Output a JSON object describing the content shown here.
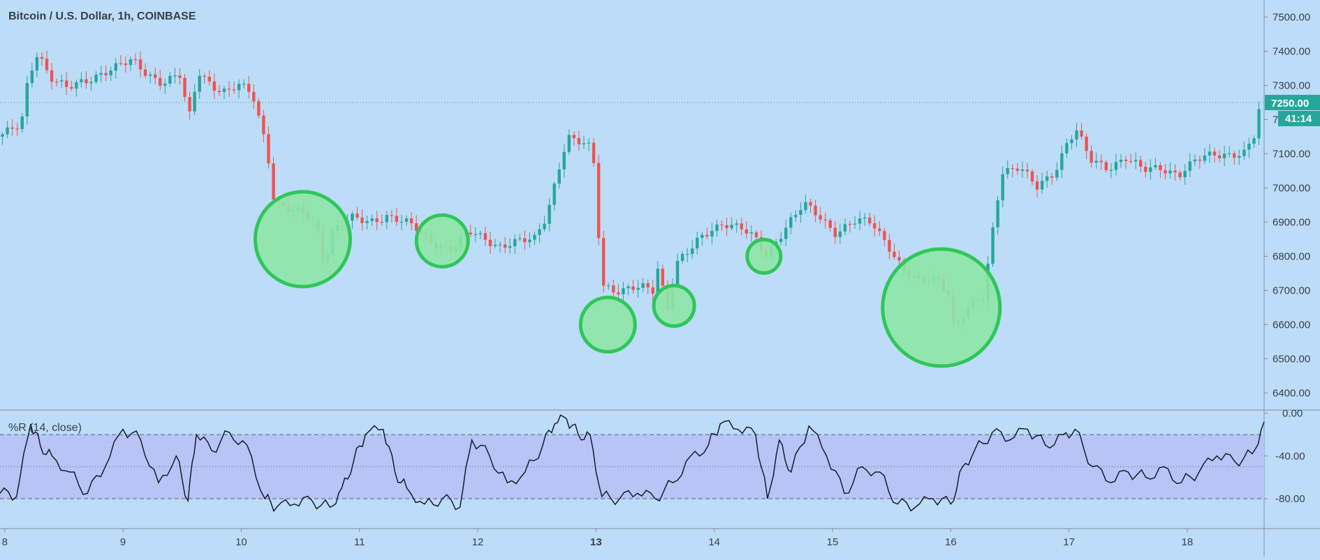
{
  "title": "Bitcoin / U.S. Dollar, 1h, COINBASE",
  "colors": {
    "background": "#bcdcf8",
    "up": "#26a69a",
    "down": "#ef5350",
    "highlight_fill": "#8ee6a6",
    "highlight_stroke": "#2fc65a",
    "wr_band": "#b7c4f5",
    "wr_line": "#1a1a2e",
    "price_tag": "#26a69a",
    "text": "#3a3f4a"
  },
  "price_label": "7250.00",
  "countdown_label": "41:14",
  "chart_data": [
    {
      "type": "candlestick",
      "title": "Bitcoin / U.S. Dollar, 1h, COINBASE",
      "xlabel": "",
      "ylabel": "",
      "ylim": [
        6350,
        7550
      ],
      "y_ticks": [
        7500,
        7400,
        7300,
        7200,
        7100,
        7000,
        6900,
        6800,
        6700,
        6600,
        6500,
        6400
      ],
      "y_tick_labels": [
        "7500.00",
        "7400.00",
        "7300.00",
        "7200.00",
        "7100.00",
        "7000.00",
        "6900.00",
        "6800.00",
        "6700.00",
        "6600.00",
        "6500.00",
        "6400.00"
      ],
      "x_range_days": [
        7.96,
        18.65
      ],
      "x_ticks": [
        8,
        9,
        10,
        11,
        12,
        13,
        14,
        15,
        16,
        17,
        18
      ],
      "x_tick_labels": [
        "8",
        "9",
        "10",
        "11",
        "12",
        "13",
        "14",
        "15",
        "16",
        "17",
        "18"
      ],
      "close_path": [
        [
          7.96,
          7150
        ],
        [
          8.08,
          7170
        ],
        [
          8.16,
          7180
        ],
        [
          8.22,
          7320
        ],
        [
          8.3,
          7400
        ],
        [
          8.4,
          7330
        ],
        [
          8.55,
          7290
        ],
        [
          8.7,
          7310
        ],
        [
          8.85,
          7340
        ],
        [
          9.0,
          7360
        ],
        [
          9.1,
          7370
        ],
        [
          9.2,
          7340
        ],
        [
          9.35,
          7310
        ],
        [
          9.5,
          7330
        ],
        [
          9.58,
          7200
        ],
        [
          9.66,
          7340
        ],
        [
          9.78,
          7300
        ],
        [
          9.9,
          7280
        ],
        [
          10.0,
          7300
        ],
        [
          10.12,
          7270
        ],
        [
          10.2,
          7170
        ],
        [
          10.26,
          7070
        ],
        [
          10.3,
          6960
        ],
        [
          10.4,
          6940
        ],
        [
          10.55,
          6920
        ],
        [
          10.65,
          6900
        ],
        [
          10.72,
          6780
        ],
        [
          10.8,
          6880
        ],
        [
          10.95,
          6910
        ],
        [
          11.1,
          6900
        ],
        [
          11.25,
          6920
        ],
        [
          11.4,
          6900
        ],
        [
          11.5,
          6880
        ],
        [
          11.65,
          6840
        ],
        [
          11.8,
          6820
        ],
        [
          11.95,
          6870
        ],
        [
          12.1,
          6850
        ],
        [
          12.2,
          6830
        ],
        [
          12.35,
          6840
        ],
        [
          12.5,
          6850
        ],
        [
          12.6,
          6920
        ],
        [
          12.7,
          7050
        ],
        [
          12.78,
          7150
        ],
        [
          12.85,
          7130
        ],
        [
          12.95,
          7130
        ],
        [
          13.0,
          7080
        ],
        [
          13.03,
          6920
        ],
        [
          13.08,
          6720
        ],
        [
          13.18,
          6700
        ],
        [
          13.3,
          6700
        ],
        [
          13.4,
          6710
        ],
        [
          13.5,
          6700
        ],
        [
          13.55,
          6780
        ],
        [
          13.62,
          6640
        ],
        [
          13.7,
          6780
        ],
        [
          13.8,
          6810
        ],
        [
          13.9,
          6850
        ],
        [
          14.0,
          6880
        ],
        [
          14.1,
          6900
        ],
        [
          14.25,
          6880
        ],
        [
          14.4,
          6840
        ],
        [
          14.45,
          6800
        ],
        [
          14.55,
          6850
        ],
        [
          14.68,
          6910
        ],
        [
          14.78,
          6950
        ],
        [
          14.9,
          6920
        ],
        [
          15.05,
          6870
        ],
        [
          15.2,
          6900
        ],
        [
          15.35,
          6900
        ],
        [
          15.5,
          6830
        ],
        [
          15.62,
          6760
        ],
        [
          15.75,
          6720
        ],
        [
          15.9,
          6740
        ],
        [
          16.0,
          6700
        ],
        [
          16.05,
          6590
        ],
        [
          16.15,
          6640
        ],
        [
          16.3,
          6680
        ],
        [
          16.38,
          6890
        ],
        [
          16.45,
          7050
        ],
        [
          16.6,
          7060
        ],
        [
          16.75,
          7000
        ],
        [
          16.9,
          7050
        ],
        [
          17.0,
          7130
        ],
        [
          17.08,
          7170
        ],
        [
          17.2,
          7080
        ],
        [
          17.35,
          7060
        ],
        [
          17.5,
          7090
        ],
        [
          17.65,
          7050
        ],
        [
          17.8,
          7060
        ],
        [
          17.95,
          7040
        ],
        [
          18.1,
          7080
        ],
        [
          18.25,
          7100
        ],
        [
          18.4,
          7100
        ],
        [
          18.5,
          7100
        ],
        [
          18.58,
          7140
        ],
        [
          18.64,
          7250
        ]
      ]
    },
    {
      "type": "line",
      "title": "%R (14, close)",
      "xlabel": "",
      "ylabel": "",
      "ylim": [
        -108,
        3
      ],
      "y_ticks": [
        0,
        -40,
        -80
      ],
      "y_tick_labels": [
        "0.00",
        "-40.00",
        "-80.00"
      ],
      "band": [
        -80,
        -20
      ],
      "midline": -50,
      "series": [
        {
          "x": [
            7.96,
            8.1,
            8.22,
            8.3,
            8.4,
            8.55,
            8.7,
            8.85,
            9.0,
            9.15,
            9.3,
            9.45,
            9.55,
            9.62,
            9.75,
            9.9,
            10.05,
            10.2,
            10.3,
            10.45,
            10.6,
            10.75,
            10.85,
            10.95,
            11.05,
            11.2,
            11.3,
            11.4,
            11.55,
            11.7,
            11.85,
            11.95,
            12.1,
            12.25,
            12.4,
            12.55,
            12.65,
            12.75,
            12.85,
            12.95,
            13.05,
            13.2,
            13.35,
            13.5,
            13.65,
            13.8,
            13.95,
            14.05,
            14.2,
            14.35,
            14.45,
            14.55,
            14.65,
            14.8,
            14.95,
            15.1,
            15.25,
            15.4,
            15.55,
            15.7,
            15.85,
            16.0,
            16.1,
            16.2,
            16.35,
            16.5,
            16.65,
            16.8,
            16.95,
            17.05,
            17.2,
            17.35,
            17.5,
            17.65,
            17.8,
            17.95,
            18.1,
            18.25,
            18.4,
            18.55,
            18.65
          ],
          "values": [
            -75,
            -78,
            -10,
            -30,
            -40,
            -55,
            -75,
            -50,
            -15,
            -25,
            -65,
            -40,
            -82,
            -20,
            -35,
            -18,
            -30,
            -80,
            -88,
            -85,
            -82,
            -88,
            -70,
            -45,
            -20,
            -15,
            -55,
            -70,
            -85,
            -80,
            -88,
            -25,
            -40,
            -65,
            -55,
            -30,
            -10,
            -5,
            -20,
            -20,
            -78,
            -80,
            -75,
            -80,
            -65,
            -40,
            -30,
            -10,
            -15,
            -20,
            -80,
            -25,
            -55,
            -12,
            -40,
            -75,
            -50,
            -55,
            -85,
            -88,
            -80,
            -85,
            -50,
            -35,
            -18,
            -25,
            -15,
            -30,
            -20,
            -15,
            -50,
            -65,
            -55,
            -60,
            -50,
            -65,
            -55,
            -40,
            -45,
            -38,
            -8
          ]
        }
      ]
    }
  ]
}
